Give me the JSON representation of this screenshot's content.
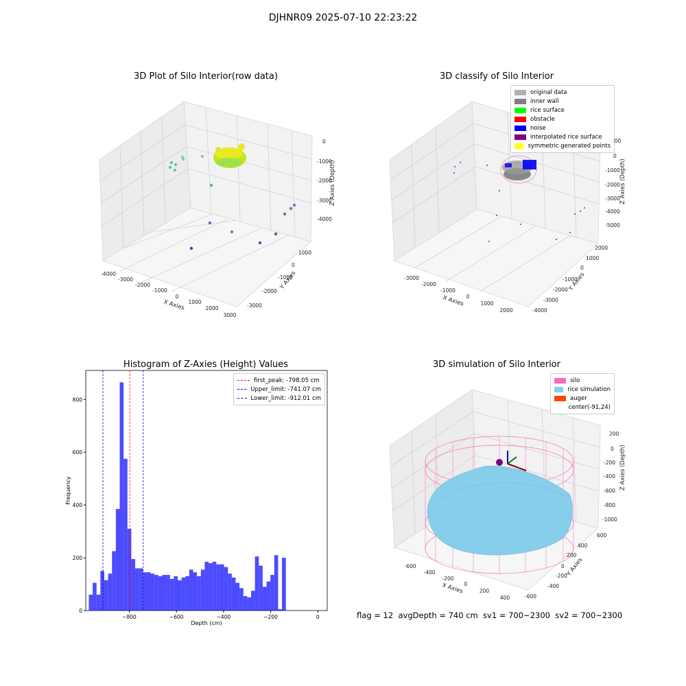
{
  "suptitle": "DJHNR09 2025-07-10 22:23:22",
  "panels": {
    "raw": {
      "title": "3D Plot of Silo Interior(row data)",
      "xlabel": "X Axies",
      "ylabel": "Y Axies",
      "zlabel": "Z Axies (Depth)",
      "xticks": [
        "-4000",
        "-3000",
        "-2000",
        "-1000",
        "0",
        "1000",
        "2000",
        "3000"
      ],
      "yticks": [
        "-3000",
        "-2000",
        "-1000",
        "0",
        "1000"
      ],
      "zticks": [
        "0",
        "-1000",
        "-2000",
        "-3000",
        "-4000"
      ]
    },
    "classify": {
      "title": "3D classify of Silo Interior",
      "xlabel": "X Axies",
      "ylabel": "Y Axies",
      "zlabel": "Z Axies (Depth)",
      "xticks": [
        "-3000",
        "-2000",
        "-1000",
        "0",
        "1000",
        "2000"
      ],
      "yticks": [
        "-4000",
        "-3000",
        "-2000",
        "-1000",
        "0",
        "1000",
        "2000"
      ],
      "zticks": [
        "1000",
        "0",
        "-1000",
        "-2000",
        "-3000",
        "-4000",
        "-5000"
      ],
      "legend": [
        {
          "label": "original data",
          "color": "#b0b0b0"
        },
        {
          "label": "inner wall",
          "color": "#808080"
        },
        {
          "label": "rice surface",
          "color": "#00ff00"
        },
        {
          "label": "obstacle",
          "color": "#ff0000"
        },
        {
          "label": "noise",
          "color": "#0000ff"
        },
        {
          "label": "interpolated rice surface",
          "color": "#800080"
        },
        {
          "label": "symmetric generated points",
          "color": "#ffff00"
        }
      ]
    },
    "simulation": {
      "title": "3D simulation of Silo Interior",
      "xlabel": "X Axies",
      "ylabel": "Y Axies",
      "zlabel": "Z Axies (Depth)",
      "xticks": [
        "-600",
        "-400",
        "-200",
        "0",
        "200",
        "400"
      ],
      "yticks": [
        "-600",
        "-400",
        "-200",
        "0",
        "200",
        "400",
        "600"
      ],
      "zticks": [
        "200",
        "0",
        "-200",
        "-400",
        "-600",
        "-800",
        "-1000"
      ],
      "legend": [
        {
          "label": "silo",
          "color": "#ff69b4"
        },
        {
          "label": "rice simulation",
          "color": "#87ceeb"
        },
        {
          "label": "auger",
          "color": "#ff4500"
        },
        {
          "label": "center(-91,24)",
          "color": ""
        }
      ]
    }
  },
  "chart_data": {
    "type": "bar",
    "title": "Histogram of Z-Axies (Height) Values",
    "xlabel": "Depth (cm)",
    "ylabel": "Frequency",
    "xlim": [
      -985,
      40
    ],
    "ylim": [
      0,
      910
    ],
    "xticks": [
      -800,
      -600,
      -400,
      -200,
      0
    ],
    "yticks": [
      0,
      200,
      400,
      600,
      800
    ],
    "bin_width": 16.4,
    "bin_start": -972,
    "values": [
      60,
      105,
      60,
      150,
      115,
      140,
      225,
      385,
      865,
      575,
      310,
      195,
      160,
      160,
      145,
      145,
      140,
      135,
      130,
      135,
      135,
      120,
      130,
      115,
      125,
      130,
      155,
      145,
      130,
      155,
      185,
      180,
      185,
      175,
      175,
      165,
      140,
      125,
      105,
      85,
      55,
      50,
      75,
      205,
      170,
      90,
      110,
      135,
      210,
      5,
      200
    ],
    "color": "#0000ff",
    "lines": [
      {
        "label": "first_peak: -798.05 cm",
        "x": -798.05,
        "color": "#ff0000"
      },
      {
        "label": "Upper_limit: -741.07 cm",
        "x": -741.07,
        "color": "#0000ff"
      },
      {
        "label": "Lower_limit: -912.01 cm",
        "x": -912.01,
        "color": "#0000ff"
      }
    ]
  },
  "footer": "flag = 12  avgDepth = 740 cm  sv1 = 700~2300  sv2 = 700~2300"
}
